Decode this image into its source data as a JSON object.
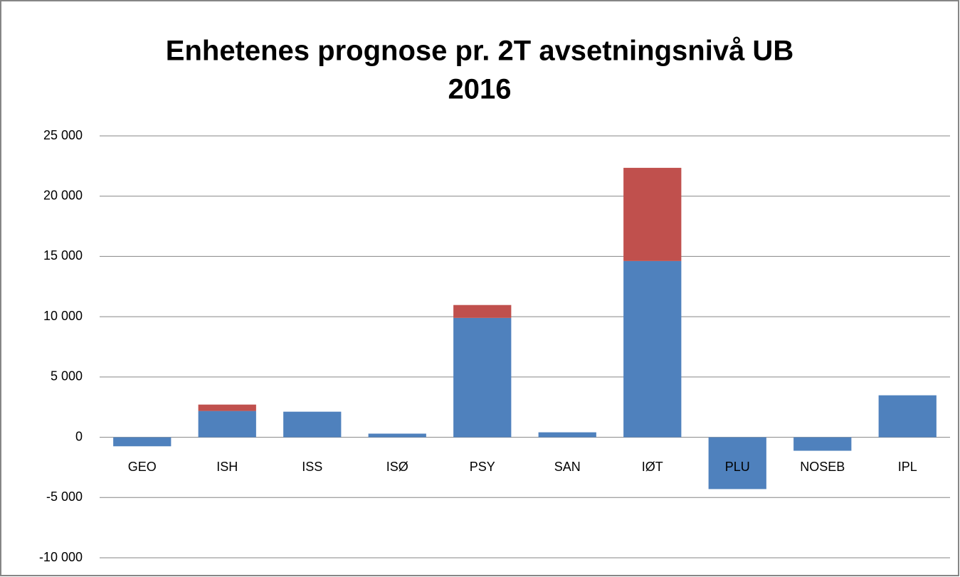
{
  "chart_data": {
    "type": "stacked_bar",
    "title": [
      "Enhetenes prognose pr. 2T avsetningsnivå UB",
      "2016"
    ],
    "categories": [
      "GEO",
      "ISH",
      "ISS",
      "ISØ",
      "PSY",
      "SAN",
      "IØT",
      "PLU",
      "NOSEB",
      "IPL"
    ],
    "series": [
      {
        "color": "#4f81bd",
        "values": [
          -750,
          2180,
          2120,
          300,
          9900,
          410,
          14620,
          -4300,
          -1120,
          3480
        ]
      },
      {
        "color": "#c0504d",
        "values": [
          0,
          530,
          0,
          0,
          1070,
          0,
          7730,
          0,
          0,
          0
        ]
      }
    ],
    "ylim": [
      -10000,
      25000
    ],
    "yticks": [
      {
        "value": -10000,
        "label": "-10 000"
      },
      {
        "value": -5000,
        "label": "-5 000"
      },
      0,
      {
        "value": 5000,
        "label": "5 000"
      },
      {
        "value": 10000,
        "label": "10 000"
      },
      {
        "value": 15000,
        "label": "15 000"
      },
      {
        "value": 20000,
        "label": "20 000"
      },
      {
        "value": 25000,
        "label": "25 000"
      }
    ],
    "grid": true
  }
}
